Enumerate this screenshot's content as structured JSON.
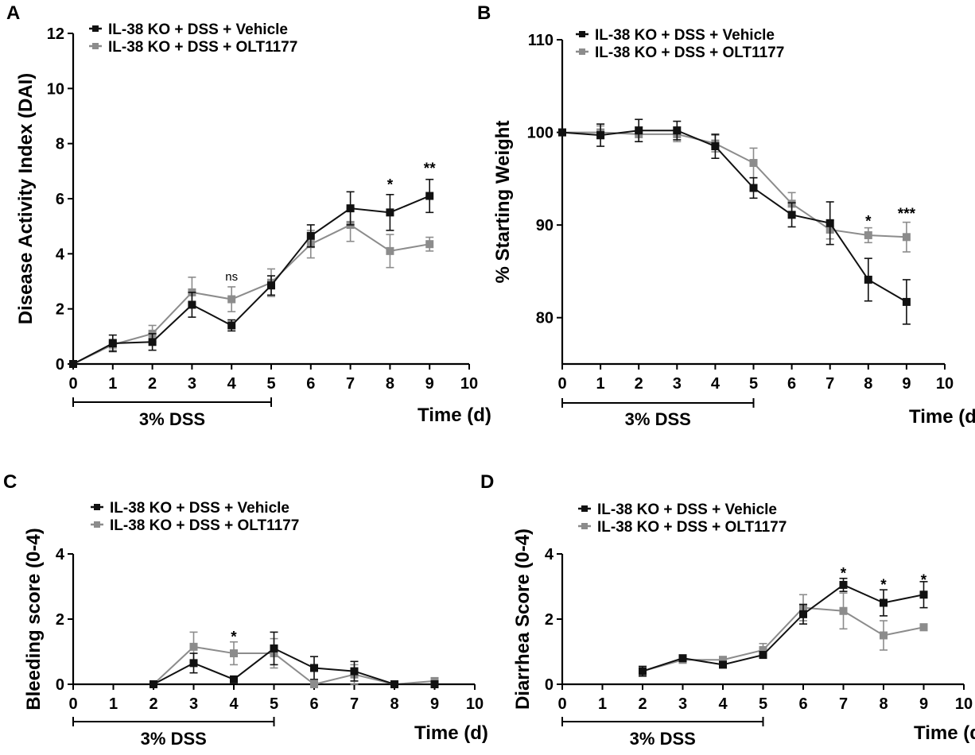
{
  "figure": {
    "panels": [
      {
        "id": "A",
        "label": "A"
      },
      {
        "id": "B",
        "label": "B"
      },
      {
        "id": "C",
        "label": "C"
      },
      {
        "id": "D",
        "label": "D"
      }
    ]
  },
  "chart_data": [
    {
      "panel": "A",
      "type": "line",
      "ylabel": "Disease Activity Index  (DAI)",
      "xlabel": "Time (d)",
      "xlim": [
        0,
        10
      ],
      "ylim": [
        0,
        12
      ],
      "xticks": [
        "0",
        "1",
        "2",
        "3",
        "4",
        "5",
        "6",
        "7",
        "8",
        "9",
        "10"
      ],
      "yticks": [
        "0",
        "2",
        "4",
        "6",
        "8",
        "10",
        "12"
      ],
      "legend": [
        "IL-38 KO + DSS + Vehicle",
        "IL-38 KO + DSS + OLT1177"
      ],
      "treatment_bar": {
        "label": "3%  DSS",
        "from": 0,
        "to": 5
      },
      "series": [
        {
          "name": "IL-38 KO + DSS + Vehicle",
          "color": "#111111",
          "x": [
            0,
            1,
            2,
            3,
            4,
            5,
            6,
            7,
            8,
            9
          ],
          "values": [
            0,
            0.75,
            0.8,
            2.15,
            1.4,
            2.85,
            4.65,
            5.65,
            5.5,
            6.1
          ],
          "errors": [
            0,
            0.3,
            0.3,
            0.45,
            0.2,
            0.35,
            0.4,
            0.6,
            0.65,
            0.6
          ]
        },
        {
          "name": "IL-38 KO + DSS + OLT1177",
          "color": "#8c8c8c",
          "x": [
            0,
            1,
            2,
            3,
            4,
            5,
            6,
            7,
            8,
            9
          ],
          "values": [
            0,
            0.7,
            1.1,
            2.6,
            2.35,
            2.95,
            4.35,
            5.05,
            4.1,
            4.35
          ],
          "errors": [
            0,
            0.2,
            0.3,
            0.55,
            0.45,
            0.5,
            0.5,
            0.6,
            0.6,
            0.25
          ]
        }
      ],
      "annotations": [
        {
          "x": 4,
          "y": 3.2,
          "text": "ns"
        },
        {
          "x": 8,
          "y": 6.5,
          "text": "*"
        },
        {
          "x": 9,
          "y": 7.1,
          "text": "**"
        }
      ]
    },
    {
      "panel": "B",
      "type": "line",
      "ylabel": "% Starting Weight",
      "xlabel": "Time (d)",
      "xlim": [
        0,
        10
      ],
      "ylim": [
        75,
        110
      ],
      "xticks": [
        "0",
        "1",
        "2",
        "3",
        "4",
        "5",
        "6",
        "7",
        "8",
        "9",
        "10"
      ],
      "yticks": [
        "80",
        "90",
        "100",
        "110"
      ],
      "legend": [
        "IL-38 KO + DSS + Vehicle",
        "IL-38 KO + DSS + OLT1177"
      ],
      "treatment_bar": {
        "label": "3%  DSS",
        "from": 0,
        "to": 5
      },
      "series": [
        {
          "name": "IL-38 KO + DSS + Vehicle",
          "color": "#111111",
          "x": [
            0,
            1,
            2,
            3,
            4,
            5,
            6,
            7,
            8,
            9
          ],
          "values": [
            100,
            99.7,
            100.2,
            100.2,
            98.5,
            94,
            91.1,
            90.2,
            84.1,
            81.7
          ],
          "errors": [
            0,
            1.2,
            1.2,
            1,
            1.3,
            1.1,
            1.3,
            2.3,
            2.3,
            2.4
          ]
        },
        {
          "name": "IL-38 KO + DSS + OLT1177",
          "color": "#8c8c8c",
          "x": [
            0,
            1,
            2,
            3,
            4,
            5,
            6,
            7,
            8,
            9
          ],
          "values": [
            100,
            100,
            99.8,
            99.8,
            98.8,
            96.7,
            92.3,
            89.5,
            88.9,
            88.7
          ],
          "errors": [
            0,
            0.7,
            0.8,
            0.8,
            0.9,
            1.6,
            1.2,
            1,
            0.8,
            1.6
          ]
        }
      ],
      "annotations": [
        {
          "x": 8,
          "y": 90.4,
          "text": "*"
        },
        {
          "x": 9,
          "y": 91.2,
          "text": "***"
        }
      ]
    },
    {
      "panel": "C",
      "type": "line",
      "ylabel": "Bleeding score (0-4)",
      "xlabel": "Time (d)",
      "xlim": [
        0,
        10
      ],
      "ylim": [
        0,
        4
      ],
      "xticks": [
        "0",
        "1",
        "2",
        "3",
        "4",
        "5",
        "6",
        "7",
        "8",
        "9",
        "10"
      ],
      "yticks": [
        "0",
        "2",
        "4"
      ],
      "legend": [
        "IL-38 KO + DSS + Vehicle",
        "IL-38 KO + DSS + OLT1177"
      ],
      "treatment_bar": {
        "label": "3%  DSS",
        "from": 0,
        "to": 5
      },
      "series": [
        {
          "name": "IL-38 KO + DSS + Vehicle",
          "color": "#111111",
          "x": [
            2,
            3,
            4,
            5,
            6,
            7,
            8,
            9
          ],
          "values": [
            0,
            0.65,
            0.15,
            1.1,
            0.5,
            0.4,
            0,
            0
          ],
          "errors": [
            0,
            0.3,
            0.05,
            0.5,
            0.35,
            0.3,
            0,
            0
          ]
        },
        {
          "name": "IL-38 KO + DSS + OLT1177",
          "color": "#8c8c8c",
          "x": [
            2,
            3,
            4,
            5,
            6,
            7,
            8,
            9
          ],
          "values": [
            0,
            1.15,
            0.95,
            0.95,
            0,
            0.3,
            0,
            0.1
          ],
          "errors": [
            0,
            0.45,
            0.35,
            0.45,
            0.05,
            0.3,
            0,
            0.05
          ]
        }
      ],
      "annotations": [
        {
          "x": 4,
          "y": 1.45,
          "text": "*"
        }
      ]
    },
    {
      "panel": "D",
      "type": "line",
      "ylabel": "Diarrhea Score (0-4)",
      "xlabel": "Time (d)",
      "xlim": [
        0,
        10
      ],
      "ylim": [
        0,
        4
      ],
      "xticks": [
        "0",
        "1",
        "2",
        "3",
        "4",
        "5",
        "6",
        "7",
        "8",
        "9",
        "10"
      ],
      "yticks": [
        "0",
        "2",
        "4"
      ],
      "legend": [
        "IL-38 KO + DSS + Vehicle",
        "IL-38 KO + DSS + OLT1177"
      ],
      "treatment_bar": {
        "label": "3%  DSS",
        "from": 0,
        "to": 5
      },
      "series": [
        {
          "name": "IL-38 KO + DSS + Vehicle",
          "color": "#111111",
          "x": [
            2,
            3,
            4,
            5,
            6,
            7,
            8,
            9
          ],
          "values": [
            0.4,
            0.8,
            0.6,
            0.9,
            2.15,
            3.05,
            2.5,
            2.75
          ],
          "errors": [
            0.15,
            0.05,
            0.05,
            0.1,
            0.3,
            0.2,
            0.4,
            0.4
          ]
        },
        {
          "name": "IL-38 KO + DSS + OLT1177",
          "color": "#8c8c8c",
          "x": [
            2,
            3,
            4,
            5,
            6,
            7,
            8,
            9
          ],
          "values": [
            0.4,
            0.75,
            0.75,
            1.05,
            2.35,
            2.25,
            1.5,
            1.75
          ],
          "errors": [
            0.1,
            0.1,
            0.1,
            0.2,
            0.4,
            0.55,
            0.45,
            0.1
          ]
        }
      ],
      "annotations": [
        {
          "x": 7,
          "y": 3.4,
          "text": "*"
        },
        {
          "x": 8,
          "y": 3.05,
          "text": "*"
        },
        {
          "x": 9,
          "y": 3.2,
          "text": "*"
        }
      ]
    }
  ]
}
